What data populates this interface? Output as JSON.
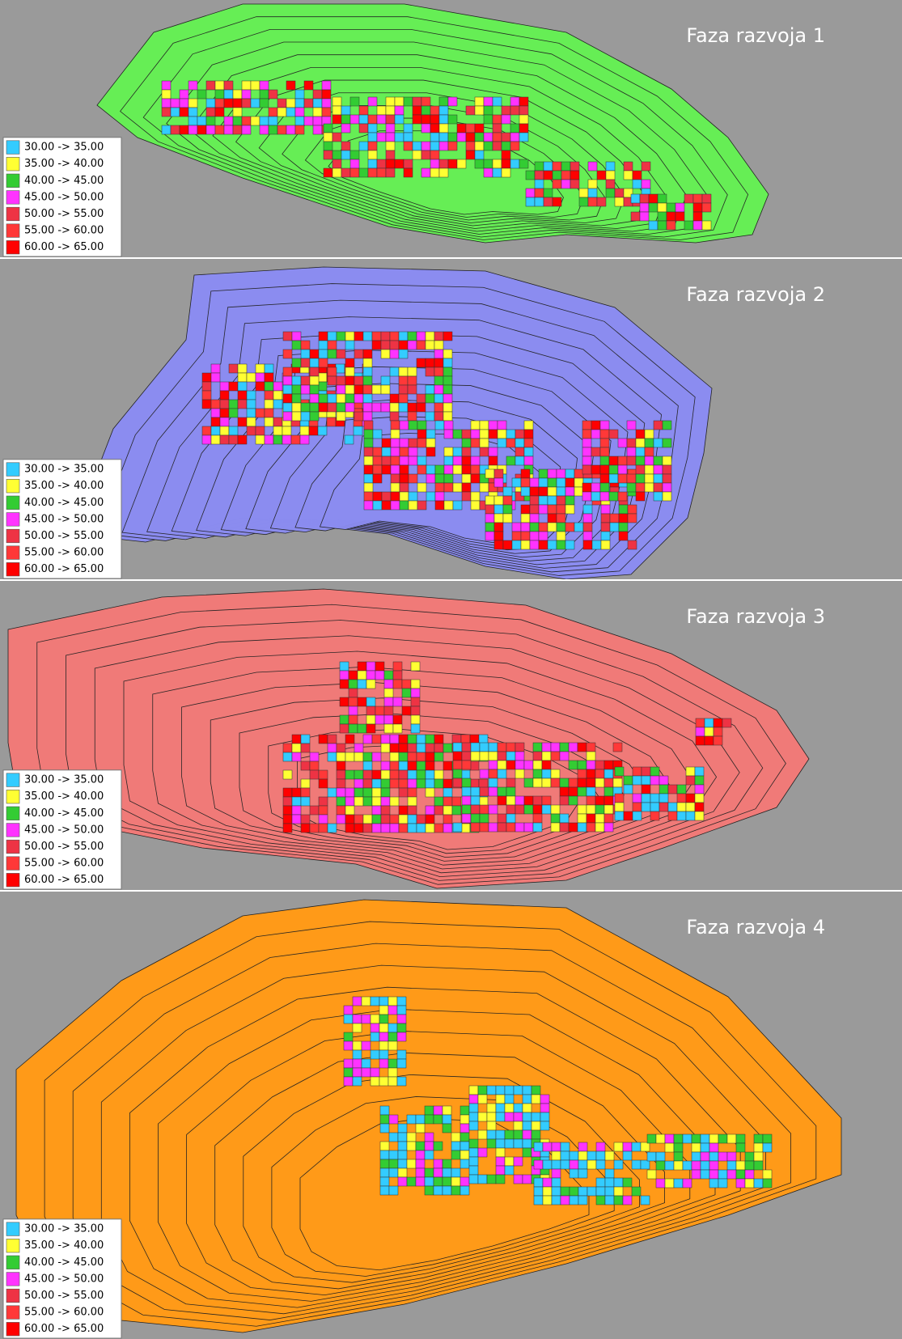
{
  "panels": [
    {
      "title": "Faza razvoja 1",
      "pit_color": "#66ee55"
    },
    {
      "title": "Faza razvoja 2",
      "pit_color": "#8b8cf0"
    },
    {
      "title": "Faza razvoja 3",
      "pit_color": "#f07a78"
    },
    {
      "title": "Faza razvoja 4",
      "pit_color": "#ff9a18"
    }
  ],
  "legend": [
    {
      "label": "30.00 -> 35.00",
      "color": "#33ccff"
    },
    {
      "label": "35.00 -> 40.00",
      "color": "#ffff33"
    },
    {
      "label": "40.00 -> 45.00",
      "color": "#33cc33"
    },
    {
      "label": "45.00 -> 50.00",
      "color": "#ff33ff"
    },
    {
      "label": "50.00 -> 55.00",
      "color": "#ee3344"
    },
    {
      "label": "55.00 -> 60.00",
      "color": "#ff3838"
    },
    {
      "label": "60.00 -> 65.00",
      "color": "#ff0000"
    }
  ]
}
